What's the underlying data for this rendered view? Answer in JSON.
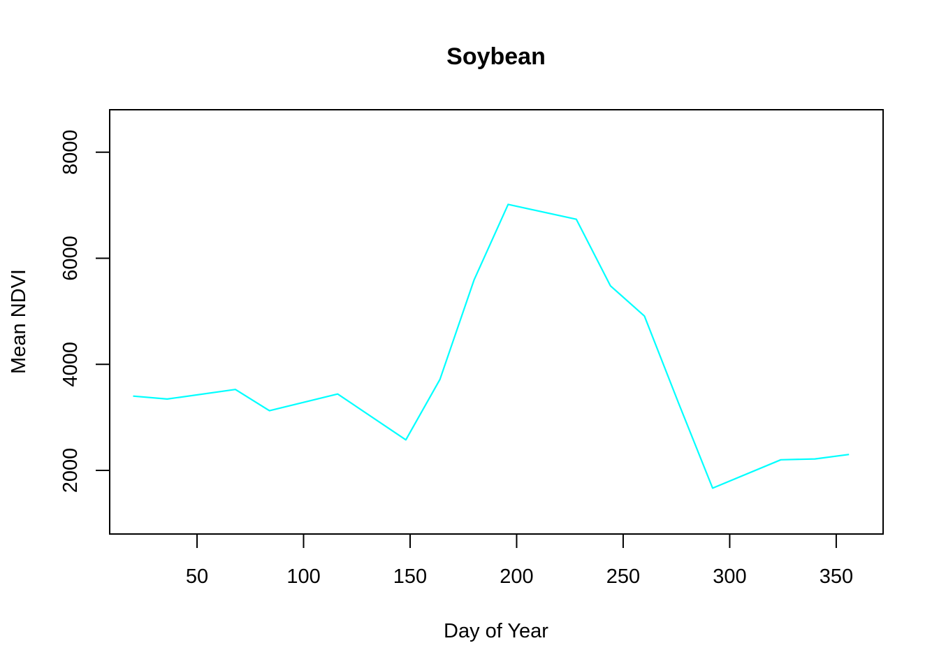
{
  "chart_data": {
    "type": "line",
    "title": "Soybean",
    "xlabel": "Day of Year",
    "ylabel": "Mean NDVI",
    "xlim": [
      9,
      372
    ],
    "ylim": [
      800,
      8800
    ],
    "xticks": [
      50,
      100,
      150,
      200,
      250,
      300,
      350
    ],
    "yticks": [
      2000,
      4000,
      6000,
      8000
    ],
    "grid": false,
    "series": [
      {
        "color": "#00ffff",
        "x": [
          20,
          36,
          68,
          84,
          116,
          148,
          164,
          180,
          196,
          228,
          244,
          260,
          276,
          292,
          324,
          340,
          356
        ],
        "y": [
          3400,
          3345,
          3525,
          3125,
          3440,
          2575,
          3715,
          5590,
          7015,
          6735,
          5480,
          4910,
          3270,
          1665,
          2200,
          2215,
          2300
        ]
      }
    ]
  }
}
